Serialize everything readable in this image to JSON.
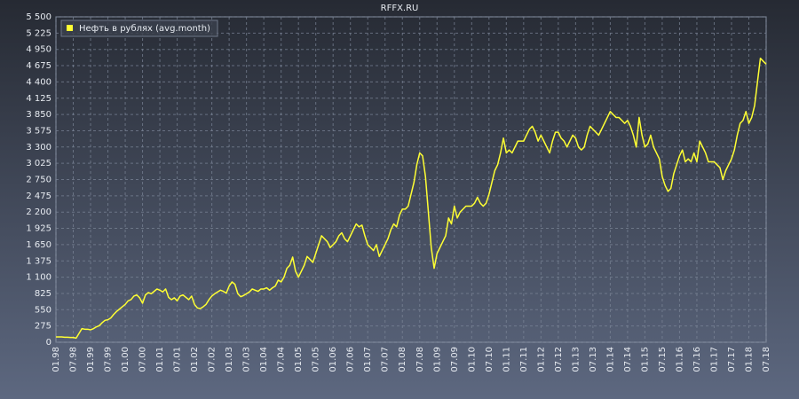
{
  "chart_data": {
    "type": "line",
    "title": "RFFX.RU",
    "categories": [
      "01.98",
      null,
      null,
      null,
      null,
      null,
      "07.98",
      null,
      null,
      null,
      null,
      null,
      "01.99",
      null,
      null,
      null,
      null,
      null,
      "07.99",
      null,
      null,
      null,
      null,
      null,
      "01.00",
      null,
      null,
      null,
      null,
      null,
      "07.00",
      null,
      null,
      null,
      null,
      null,
      "01.01",
      null,
      null,
      null,
      null,
      null,
      "07.01",
      null,
      null,
      null,
      null,
      null,
      "01.02",
      null,
      null,
      null,
      null,
      null,
      "07.02",
      null,
      null,
      null,
      null,
      null,
      "01.03",
      null,
      null,
      null,
      null,
      null,
      "07.03",
      null,
      null,
      null,
      null,
      null,
      "01.04",
      null,
      null,
      null,
      null,
      null,
      "07.04",
      null,
      null,
      null,
      null,
      null,
      "01.05",
      null,
      null,
      null,
      null,
      null,
      "07.05",
      null,
      null,
      null,
      null,
      null,
      "01.06",
      null,
      null,
      null,
      null,
      null,
      "07.06",
      null,
      null,
      null,
      null,
      null,
      "01.07",
      null,
      null,
      null,
      null,
      null,
      "07.07",
      null,
      null,
      null,
      null,
      null,
      "01.08",
      null,
      null,
      null,
      null,
      null,
      "07.08",
      null,
      null,
      null,
      null,
      null,
      "01.09",
      null,
      null,
      null,
      null,
      null,
      "07.09",
      null,
      null,
      null,
      null,
      null,
      "01.10",
      null,
      null,
      null,
      null,
      null,
      "07.10",
      null,
      null,
      null,
      null,
      null,
      "01.11",
      null,
      null,
      null,
      null,
      null,
      "07.11",
      null,
      null,
      null,
      null,
      null,
      "01.12",
      null,
      null,
      null,
      null,
      null,
      "07.12",
      null,
      null,
      null,
      null,
      null,
      "01.13",
      null,
      null,
      null,
      null,
      null,
      "07.13",
      null,
      null,
      null,
      null,
      null,
      "01.14",
      null,
      null,
      null,
      null,
      null,
      "07.14",
      null,
      null,
      null,
      null,
      null,
      "01.15",
      null,
      null,
      null,
      null,
      null,
      "07.15",
      null,
      null,
      null,
      null,
      null,
      "01.16",
      null,
      null,
      null,
      null,
      null,
      "07.16",
      null,
      null,
      null,
      null,
      null,
      "01.17",
      null,
      null,
      null,
      null,
      null,
      "07.17",
      null,
      null,
      null,
      null,
      null,
      "01.18",
      null,
      null,
      null,
      null,
      null,
      "07.18"
    ],
    "series": [
      {
        "name": "Нефть в рублях (avg.month)",
        "color": "#ffff33",
        "values": [
          90,
          90,
          90,
          85,
          85,
          80,
          80,
          70,
          150,
          230,
          220,
          220,
          210,
          230,
          260,
          280,
          330,
          370,
          380,
          410,
          470,
          520,
          560,
          600,
          640,
          700,
          720,
          780,
          800,
          750,
          660,
          800,
          840,
          820,
          860,
          900,
          880,
          850,
          900,
          760,
          720,
          750,
          700,
          780,
          800,
          760,
          720,
          780,
          640,
          580,
          570,
          600,
          640,
          720,
          780,
          820,
          850,
          880,
          860,
          830,
          950,
          1020,
          980,
          820,
          770,
          790,
          820,
          850,
          900,
          880,
          860,
          900,
          900,
          920,
          880,
          920,
          950,
          1050,
          1020,
          1100,
          1250,
          1300,
          1440,
          1200,
          1100,
          1200,
          1300,
          1450,
          1400,
          1350,
          1500,
          1650,
          1800,
          1750,
          1700,
          1600,
          1650,
          1700,
          1800,
          1850,
          1750,
          1700,
          1800,
          1900,
          2000,
          1950,
          1980,
          1800,
          1650,
          1600,
          1550,
          1650,
          1450,
          1550,
          1650,
          1750,
          1900,
          2000,
          1950,
          2150,
          2250,
          2250,
          2300,
          2500,
          2700,
          3000,
          3200,
          3150,
          2800,
          2200,
          1600,
          1250,
          1500,
          1600,
          1700,
          1800,
          2100,
          2000,
          2300,
          2100,
          2200,
          2250,
          2300,
          2300,
          2300,
          2350,
          2450,
          2350,
          2300,
          2350,
          2500,
          2700,
          2900,
          3000,
          3200,
          3450,
          3200,
          3250,
          3200,
          3300,
          3400,
          3400,
          3400,
          3500,
          3600,
          3650,
          3550,
          3400,
          3500,
          3400,
          3300,
          3200,
          3400,
          3550,
          3550,
          3450,
          3400,
          3300,
          3400,
          3500,
          3450,
          3300,
          3250,
          3300,
          3500,
          3650,
          3600,
          3550,
          3500,
          3600,
          3700,
          3800,
          3900,
          3850,
          3800,
          3800,
          3750,
          3700,
          3750,
          3650,
          3500,
          3300,
          3800,
          3500,
          3300,
          3350,
          3500,
          3300,
          3200,
          3100,
          2800,
          2650,
          2550,
          2600,
          2850,
          3000,
          3150,
          3250,
          3050,
          3100,
          3050,
          3200,
          3050,
          3400,
          3300,
          3200,
          3050,
          3050,
          3050,
          3000,
          2950,
          2750,
          2900,
          3000,
          3100,
          3250,
          3500,
          3700,
          3750,
          3900,
          3700,
          3800,
          4000,
          4400,
          4800,
          4750,
          4700
        ]
      }
    ],
    "ylim": [
      0,
      5500
    ],
    "yticks": [
      0,
      275,
      550,
      825,
      {
        "value": 1100,
        "label": "1 100"
      },
      {
        "value": 1375,
        "label": "1 375"
      },
      {
        "value": 1650,
        "label": "1 650"
      },
      {
        "value": 1925,
        "label": "1 925"
      },
      {
        "value": 2200,
        "label": "2 200"
      },
      {
        "value": 2475,
        "label": "2 475"
      },
      {
        "value": 2750,
        "label": "2 750"
      },
      {
        "value": 3025,
        "label": "3 025"
      },
      {
        "value": 3300,
        "label": "3 300"
      },
      {
        "value": 3575,
        "label": "3 575"
      },
      {
        "value": 3850,
        "label": "3 850"
      },
      {
        "value": 4125,
        "label": "4 125"
      },
      {
        "value": 4400,
        "label": "4 400"
      },
      {
        "value": 4675,
        "label": "4 675"
      },
      {
        "value": 4950,
        "label": "4 950"
      },
      {
        "value": 5225,
        "label": "5 225"
      },
      {
        "value": 5500,
        "label": "5 500"
      }
    ],
    "grid": true,
    "legend": "top-left"
  }
}
